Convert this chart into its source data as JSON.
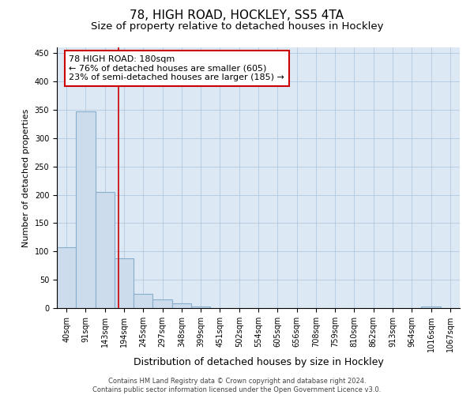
{
  "title1": "78, HIGH ROAD, HOCKLEY, SS5 4TA",
  "title2": "Size of property relative to detached houses in Hockley",
  "xlabel": "Distribution of detached houses by size in Hockley",
  "ylabel": "Number of detached properties",
  "bar_labels": [
    "40sqm",
    "91sqm",
    "143sqm",
    "194sqm",
    "245sqm",
    "297sqm",
    "348sqm",
    "399sqm",
    "451sqm",
    "502sqm",
    "554sqm",
    "605sqm",
    "656sqm",
    "708sqm",
    "759sqm",
    "810sqm",
    "862sqm",
    "913sqm",
    "964sqm",
    "1016sqm",
    "1067sqm"
  ],
  "bar_values": [
    107,
    347,
    205,
    88,
    25,
    15,
    8,
    3,
    0,
    0,
    0,
    0,
    0,
    0,
    0,
    0,
    0,
    0,
    0,
    3,
    0
  ],
  "bar_color": "#ccdcec",
  "bar_edgecolor": "#88aece",
  "bar_linewidth": 0.8,
  "vline_x": 2.73,
  "vline_color": "#cc0000",
  "vline_linewidth": 1.2,
  "annotation_text": "78 HIGH ROAD: 180sqm\n← 76% of detached houses are smaller (605)\n23% of semi-detached houses are larger (185) →",
  "annotation_edgecolor": "#cc0000",
  "annotation_facecolor": "white",
  "annotation_fontsize": 8,
  "ylim": [
    0,
    460
  ],
  "yticks": [
    0,
    50,
    100,
    150,
    200,
    250,
    300,
    350,
    400,
    450
  ],
  "grid_color": "#aac4dc",
  "background_color": "#dce8f4",
  "footer_text": "Contains HM Land Registry data © Crown copyright and database right 2024.\nContains public sector information licensed under the Open Government Licence v3.0.",
  "title1_fontsize": 11,
  "title2_fontsize": 9.5,
  "xlabel_fontsize": 9,
  "ylabel_fontsize": 8,
  "tick_fontsize": 7,
  "footer_fontsize": 6
}
